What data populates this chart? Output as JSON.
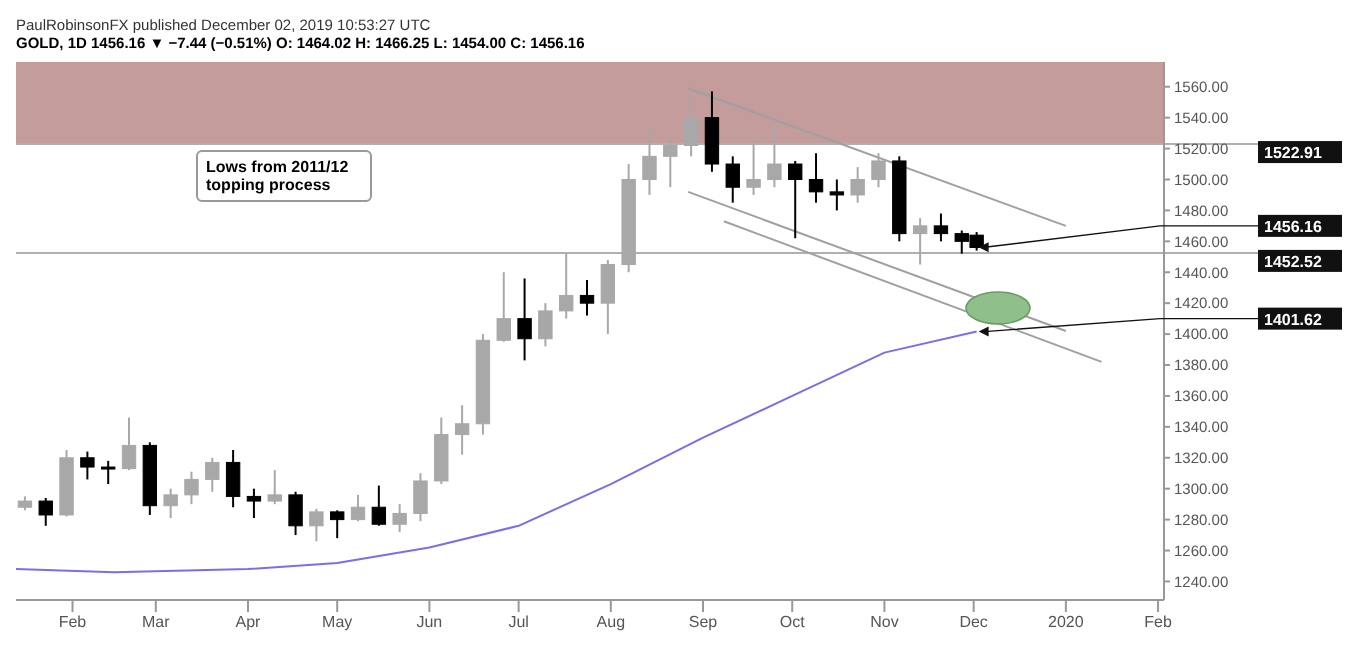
{
  "chart_data": {
    "type": "candlestick",
    "title": "PaulRobinsonFX published December 02, 2019 10:53:27 UTC",
    "subtitle": "GOLD, 1D 1456.16 ▼ −7.44 (−0.51%) O: 1464.02 H: 1466.25 L: 1454.00 C: 1456.16",
    "x": [
      "2019-01-16",
      "2019-01-23",
      "2019-01-30",
      "2019-02-06",
      "2019-02-13",
      "2019-02-20",
      "2019-02-27",
      "2019-03-06",
      "2019-03-13",
      "2019-03-20",
      "2019-03-27",
      "2019-04-03",
      "2019-04-10",
      "2019-04-17",
      "2019-04-24",
      "2019-05-01",
      "2019-05-08",
      "2019-05-15",
      "2019-05-22",
      "2019-05-29",
      "2019-06-05",
      "2019-06-12",
      "2019-06-19",
      "2019-06-26",
      "2019-07-03",
      "2019-07-10",
      "2019-07-17",
      "2019-07-24",
      "2019-07-31",
      "2019-08-07",
      "2019-08-14",
      "2019-08-21",
      "2019-08-28",
      "2019-09-04",
      "2019-09-11",
      "2019-09-18",
      "2019-09-25",
      "2019-10-02",
      "2019-10-09",
      "2019-10-16",
      "2019-10-23",
      "2019-10-30",
      "2019-11-06",
      "2019-11-13",
      "2019-11-20",
      "2019-11-27",
      "2019-12-02"
    ],
    "ohlc": [
      [
        1288,
        1295,
        1286,
        1292
      ],
      [
        1292,
        1294,
        1276,
        1283
      ],
      [
        1283,
        1325,
        1282,
        1320
      ],
      [
        1320,
        1324,
        1306,
        1314
      ],
      [
        1314,
        1318,
        1303,
        1313
      ],
      [
        1313,
        1346,
        1312,
        1328
      ],
      [
        1328,
        1330,
        1283,
        1289
      ],
      [
        1289,
        1300,
        1281,
        1296
      ],
      [
        1296,
        1311,
        1290,
        1306
      ],
      [
        1306,
        1320,
        1298,
        1317
      ],
      [
        1317,
        1325,
        1288,
        1295
      ],
      [
        1295,
        1300,
        1281,
        1292
      ],
      [
        1292,
        1312,
        1290,
        1296
      ],
      [
        1296,
        1298,
        1270,
        1276
      ],
      [
        1276,
        1287,
        1266,
        1285
      ],
      [
        1285,
        1286,
        1268,
        1280
      ],
      [
        1280,
        1296,
        1279,
        1288
      ],
      [
        1288,
        1302,
        1276,
        1277
      ],
      [
        1277,
        1290,
        1272,
        1284
      ],
      [
        1284,
        1310,
        1279,
        1305
      ],
      [
        1305,
        1346,
        1303,
        1335
      ],
      [
        1335,
        1354,
        1322,
        1342
      ],
      [
        1342,
        1400,
        1335,
        1396
      ],
      [
        1396,
        1440,
        1395,
        1410
      ],
      [
        1410,
        1436,
        1383,
        1397
      ],
      [
        1397,
        1420,
        1392,
        1415
      ],
      [
        1415,
        1452,
        1410,
        1425
      ],
      [
        1425,
        1435,
        1412,
        1420
      ],
      [
        1420,
        1448,
        1400,
        1445
      ],
      [
        1445,
        1510,
        1440,
        1500
      ],
      [
        1500,
        1534,
        1490,
        1515
      ],
      [
        1515,
        1530,
        1495,
        1522
      ],
      [
        1522,
        1555,
        1515,
        1540
      ],
      [
        1540,
        1557,
        1505,
        1510
      ],
      [
        1510,
        1515,
        1485,
        1495
      ],
      [
        1495,
        1525,
        1490,
        1500
      ],
      [
        1500,
        1535,
        1495,
        1510
      ],
      [
        1510,
        1512,
        1462,
        1500
      ],
      [
        1500,
        1517,
        1485,
        1492
      ],
      [
        1492,
        1500,
        1480,
        1490
      ],
      [
        1490,
        1508,
        1485,
        1500
      ],
      [
        1500,
        1517,
        1495,
        1512
      ],
      [
        1512,
        1515,
        1460,
        1465
      ],
      [
        1465,
        1475,
        1445,
        1470
      ],
      [
        1470,
        1478,
        1460,
        1465
      ],
      [
        1465,
        1467,
        1452,
        1460
      ],
      [
        1464,
        1466,
        1454,
        1456
      ]
    ],
    "colors": [
      "#a8a8a8",
      "#000000",
      "#a8a8a8",
      "#000000",
      "#000000",
      "#a8a8a8",
      "#000000",
      "#a8a8a8",
      "#a8a8a8",
      "#a8a8a8",
      "#000000",
      "#000000",
      "#a8a8a8",
      "#000000",
      "#a8a8a8",
      "#000000",
      "#a8a8a8",
      "#000000",
      "#a8a8a8",
      "#a8a8a8",
      "#a8a8a8",
      "#a8a8a8",
      "#a8a8a8",
      "#a8a8a8",
      "#000000",
      "#a8a8a8",
      "#a8a8a8",
      "#000000",
      "#a8a8a8",
      "#a8a8a8",
      "#a8a8a8",
      "#a8a8a8",
      "#a8a8a8",
      "#000000",
      "#000000",
      "#a8a8a8",
      "#a8a8a8",
      "#000000",
      "#000000",
      "#000000",
      "#a8a8a8",
      "#a8a8a8",
      "#000000",
      "#a8a8a8",
      "#000000",
      "#000000",
      "#000000"
    ],
    "series": [
      {
        "type": "line",
        "color": "#7b6cf0",
        "x": [
          "2019-01-13",
          "2019-02-15",
          "2019-04-01",
          "2019-05-01",
          "2019-06-01",
          "2019-07-01",
          "2019-08-01",
          "2019-09-01",
          "2019-10-01",
          "2019-11-01",
          "2019-12-02"
        ],
        "values": [
          1248,
          1246,
          1248,
          1252,
          1262,
          1276,
          1303,
          1333,
          1360,
          1388,
          1401.62
        ]
      },
      {
        "type": "line",
        "color": "#a0a0a0",
        "x": [
          "2019-08-27",
          "2020-01-01"
        ],
        "values": [
          1559,
          1470
        ]
      },
      {
        "type": "line",
        "color": "#a0a0a0",
        "x": [
          "2019-08-27",
          "2020-01-01"
        ],
        "values": [
          1492,
          1402
        ]
      },
      {
        "type": "line",
        "color": "#a0a0a0",
        "x": [
          "2019-09-08",
          "2020-01-13"
        ],
        "values": [
          1473,
          1382
        ]
      }
    ],
    "bands": [
      {
        "axis": "y",
        "from": 1522.91,
        "to": 1576,
        "color": "#c49c9c"
      }
    ],
    "ref_lines": [
      {
        "axis": "y",
        "value": 1522.91,
        "label": "1522.91",
        "color": "#b0b0b0"
      },
      {
        "axis": "y",
        "value": 1452.52,
        "label": "1452.52",
        "color": "#b0b0b0"
      }
    ],
    "annotations": [
      "Lows from 2011/12 topping process",
      {
        "text": "1456.16",
        "x": "2019-12-02",
        "y": 1456.16
      },
      {
        "text": "1401.62",
        "x": "2019-12-02",
        "y": 1401.62
      }
    ],
    "xlim": [
      "2019-01-13",
      "2020-02-03"
    ],
    "xticks": [
      {
        "value": "2019-02-01",
        "label": "Feb"
      },
      {
        "value": "2019-03-01",
        "label": "Mar"
      },
      {
        "value": "2019-04-01",
        "label": "Apr"
      },
      {
        "value": "2019-05-01",
        "label": "May"
      },
      {
        "value": "2019-06-01",
        "label": "Jun"
      },
      {
        "value": "2019-07-01",
        "label": "Jul"
      },
      {
        "value": "2019-08-01",
        "label": "Aug"
      },
      {
        "value": "2019-09-01",
        "label": "Sep"
      },
      {
        "value": "2019-10-01",
        "label": "Oct"
      },
      {
        "value": "2019-11-01",
        "label": "Nov"
      },
      {
        "value": "2019-12-01",
        "label": "Dec"
      },
      {
        "value": "2020-01-01",
        "label": "2020"
      },
      {
        "value": "2020-02-01",
        "label": "Feb"
      }
    ],
    "ylim": [
      1228,
      1576
    ],
    "yticks": [
      {
        "value": 1240,
        "label": "1240.00"
      },
      {
        "value": 1260,
        "label": "1260.00"
      },
      {
        "value": 1280,
        "label": "1280.00"
      },
      {
        "value": 1300,
        "label": "1300.00"
      },
      {
        "value": 1320,
        "label": "1320.00"
      },
      {
        "value": 1340,
        "label": "1340.00"
      },
      {
        "value": 1360,
        "label": "1360.00"
      },
      {
        "value": 1380,
        "label": "1380.00"
      },
      {
        "value": 1400,
        "label": "1400.00"
      },
      {
        "value": 1420,
        "label": "1420.00"
      },
      {
        "value": 1440,
        "label": "1440.00"
      },
      {
        "value": 1460,
        "label": "1460.00"
      },
      {
        "value": 1480,
        "label": "1480.00"
      },
      {
        "value": 1500,
        "label": "1500.00"
      },
      {
        "value": 1520,
        "label": "1520.00"
      },
      {
        "value": 1540,
        "label": "1540.00"
      },
      {
        "value": 1560,
        "label": "1560.00"
      }
    ]
  }
}
